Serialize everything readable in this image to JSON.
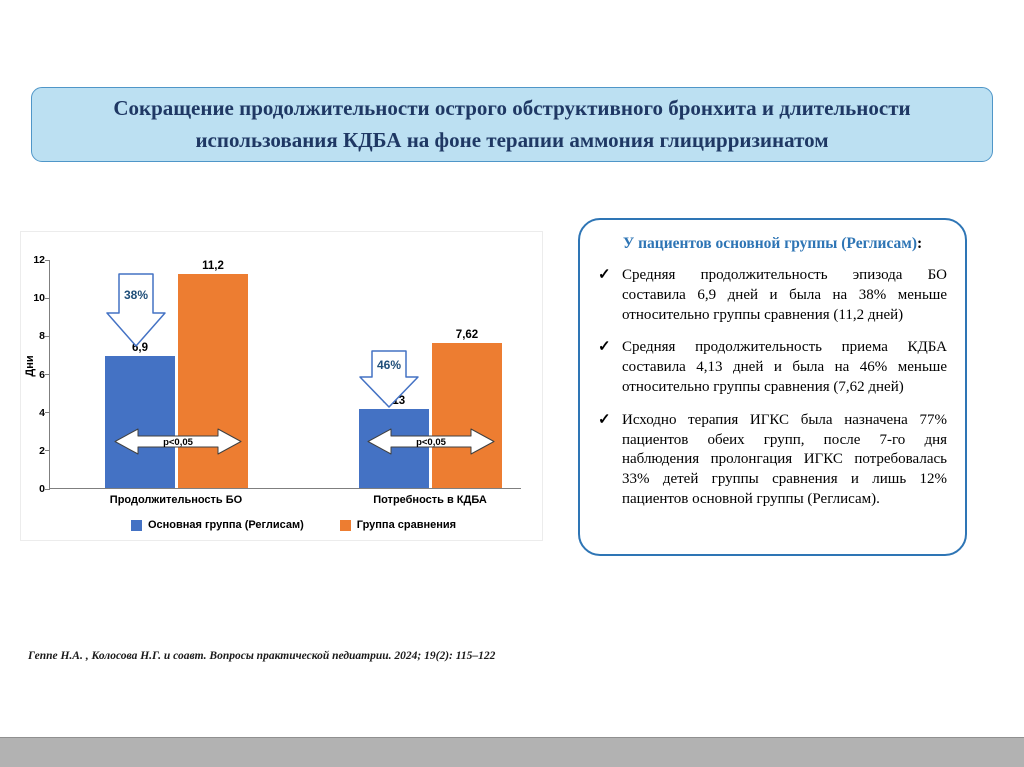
{
  "slide": {
    "title": "Сокращение продолжительности острого обструктивного бронхита и длительности использования КДБА на фоне терапии аммония глицирризинатом"
  },
  "chart_data": {
    "type": "bar",
    "title": "",
    "xlabel": "",
    "ylabel": "Дни",
    "ylim": [
      0,
      12
    ],
    "yticks": [
      0,
      2,
      4,
      6,
      8,
      10,
      12
    ],
    "grid": false,
    "legend_position": "bottom",
    "categories": [
      "Продолжительность БО",
      "Потребность в КДБА"
    ],
    "series": [
      {
        "name": "Основная группа (Реглисам)",
        "color": "#4472C4",
        "values": [
          6.9,
          4.13
        ],
        "labels": [
          "6,9",
          "4,13"
        ]
      },
      {
        "name": "Группа сравнения",
        "color": "#ED7D31",
        "values": [
          11.2,
          7.62
        ],
        "labels": [
          "11,2",
          "7,62"
        ]
      }
    ],
    "annotations": {
      "reduction_arrows": [
        "38%",
        "46%"
      ],
      "significance": [
        "p<0,05",
        "p<0,05"
      ]
    }
  },
  "info_box": {
    "heading_highlight": "У пациентов основной группы (Реглисам)",
    "heading_suffix": ":",
    "check_char": "✓",
    "bullets": [
      "Средняя продолжительность эпизода БО составила 6,9 дней и была на 38% меньше относительно группы сравнения (11,2 дней)",
      "Средняя продолжительность приема КДБА составила 4,13 дней и была на 46% меньше относительно группы сравнения (7,62 дней)",
      "Исходно терапия ИГКС была назначена 77% пациентов обеих групп, после 7-го дня наблюдения пролонгация ИГКС потребовалась 33% детей группы сравнения и лишь 12% пациентов основной группы (Реглисам)."
    ]
  },
  "citation": "Геппе Н.А. ,  Колосова Н.Г.  и соавт. Вопросы практической педиатрии. 2024; 19(2): 115–122",
  "colors": {
    "primary_bar": "#4472C4",
    "comparison_bar": "#ED7D31",
    "title_text": "#1F3864",
    "title_bg": "#BCE0F2",
    "title_border": "#4F96C8",
    "box_border": "#2E75B5",
    "heading_blue": "#2E75B5"
  }
}
